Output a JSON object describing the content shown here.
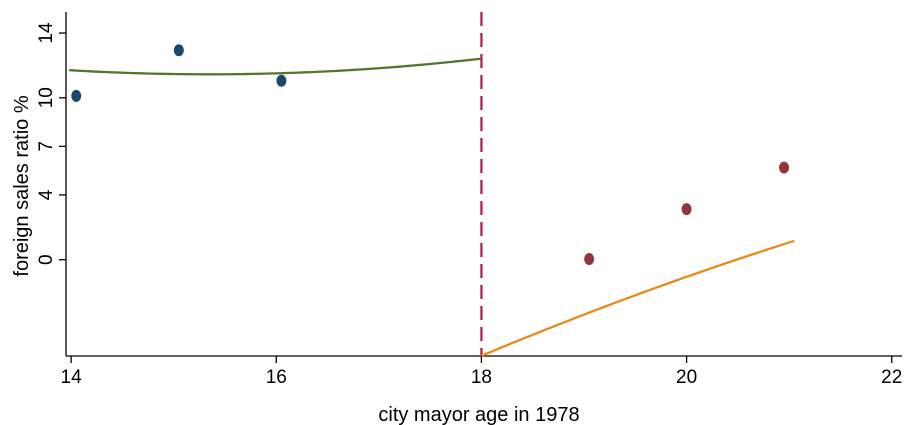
{
  "chart_data": {
    "type": "scatter",
    "title": "",
    "xlabel": "city mayor age in 1978",
    "ylabel": "foreign sales ratio %",
    "xlim": [
      13.95,
      22.1
    ],
    "ylim": [
      -5.95,
      15.3
    ],
    "x_ticks": [
      14,
      16,
      18,
      20,
      22
    ],
    "y_ticks": [
      0,
      4,
      7,
      10,
      14
    ],
    "grid": false,
    "legend": "none",
    "cutoff": {
      "x": 18,
      "color": "#b2184a",
      "style": "dashed"
    },
    "series": [
      {
        "points": [
          {
            "x": 14.05,
            "y": 10.12
          },
          {
            "x": 15.05,
            "y": 12.94
          },
          {
            "x": 16.05,
            "y": 11.05
          }
        ],
        "marker_color": "#1a476f",
        "fit": {
          "x_range": [
            13.98,
            18.0
          ],
          "quadratic": [
            43.83,
            -4.22,
            0.1375
          ],
          "color": "#55752f"
        }
      },
      {
        "points": [
          {
            "x": 19.05,
            "y": 0.04
          },
          {
            "x": 20.0,
            "y": 3.12
          },
          {
            "x": 20.95,
            "y": 5.69
          }
        ],
        "marker_color": "#90353b",
        "fit": {
          "x_range": [
            18.0,
            21.05
          ],
          "quadratic": [
            -87.74,
            6.44,
            -0.1053
          ],
          "color": "#e8891d"
        }
      }
    ]
  }
}
